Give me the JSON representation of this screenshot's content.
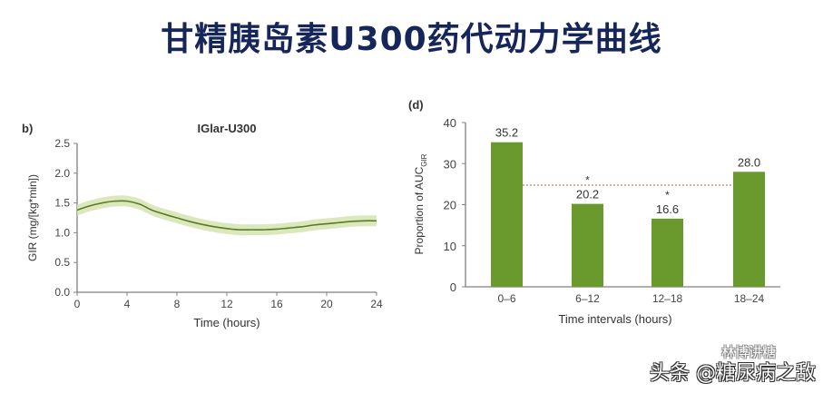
{
  "page": {
    "title": "甘精胰岛素U300药代动力学曲线",
    "watermark_main": "头条 @糖尿病之敌",
    "watermark_sub": "林博讲糖"
  },
  "colors": {
    "title": "#17265a",
    "line": "#5a7a2a",
    "band": "#d4e4b0",
    "bar": "#6a9a2e",
    "axis": "#808080",
    "reference_line": "#c06060"
  },
  "left_panel": {
    "label": "b)",
    "title": "IGlar-U300",
    "xlabel": "Time (hours)",
    "ylabel": "GIR (mg/[kg*min])",
    "xticks": [
      "0",
      "4",
      "8",
      "12",
      "16",
      "20",
      "24"
    ],
    "yticks": [
      "0.0",
      "0.5",
      "1.0",
      "1.5",
      "2.0",
      "2.5"
    ]
  },
  "right_panel": {
    "label": "(d)",
    "xlabel": "Time intervals (hours)",
    "ylabel": "Proportion of AUC",
    "ylabel_sub": "GIR",
    "xticks": [
      "0–6",
      "6–12",
      "12–18",
      "18–24"
    ],
    "yticks": [
      "0",
      "10",
      "20",
      "30",
      "40"
    ],
    "bar_labels": [
      "35.2",
      "20.2",
      "16.6",
      "28.0"
    ],
    "significance": [
      "",
      "*",
      "*",
      ""
    ]
  },
  "chart_data": [
    {
      "type": "line",
      "title": "IGlar-U300",
      "xlabel": "Time (hours)",
      "ylabel": "GIR (mg/[kg*min])",
      "xlim": [
        0,
        24
      ],
      "ylim": [
        0,
        2.5
      ],
      "x": [
        0,
        1,
        2,
        3,
        4,
        5,
        6,
        7,
        8,
        9,
        10,
        11,
        12,
        13,
        14,
        15,
        16,
        17,
        18,
        19,
        20,
        21,
        22,
        23,
        24
      ],
      "series": [
        {
          "name": "IGlar-U300 mean GIR",
          "values": [
            1.38,
            1.45,
            1.5,
            1.53,
            1.53,
            1.48,
            1.38,
            1.31,
            1.25,
            1.19,
            1.14,
            1.1,
            1.07,
            1.05,
            1.05,
            1.05,
            1.06,
            1.08,
            1.1,
            1.13,
            1.15,
            1.17,
            1.19,
            1.2,
            1.2
          ]
        }
      ],
      "confidence_band": true,
      "grid": false
    },
    {
      "type": "bar",
      "title": "",
      "xlabel": "Time intervals (hours)",
      "ylabel": "Proportion of AUC_GIR",
      "categories": [
        "0–6",
        "6–12",
        "12–18",
        "18–24"
      ],
      "values": [
        35.2,
        20.2,
        16.6,
        28.0
      ],
      "ylim": [
        0,
        40
      ],
      "reference_line": 25,
      "annotations": [
        "",
        "*",
        "*",
        ""
      ],
      "grid": false
    }
  ]
}
